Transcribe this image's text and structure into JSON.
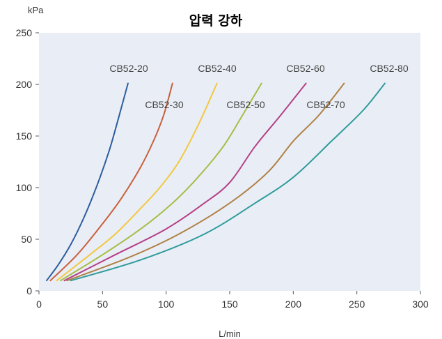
{
  "chart_data": {
    "type": "line",
    "title": "압력 강하",
    "xlabel": "L/min",
    "ylabel": "kPa",
    "xlim": [
      0,
      300
    ],
    "ylim": [
      0,
      250
    ],
    "xticks": [
      0,
      50,
      100,
      150,
      200,
      250,
      300
    ],
    "yticks": [
      0,
      50,
      100,
      150,
      200,
      250
    ],
    "grid": false,
    "plot_background": "#e9eef6",
    "series": [
      {
        "name": "CB52-20",
        "color": "#2e5d9e",
        "x": [
          6,
          15,
          25,
          35,
          45,
          55,
          62,
          70
        ],
        "y": [
          10,
          25,
          45,
          70,
          100,
          135,
          165,
          201
        ]
      },
      {
        "name": "CB52-30",
        "color": "#c95f3c",
        "x": [
          9,
          30,
          50,
          65,
          80,
          90,
          98,
          105
        ],
        "y": [
          10,
          35,
          65,
          90,
          120,
          145,
          170,
          201
        ]
      },
      {
        "name": "CB52-40",
        "color": "#f2c840",
        "x": [
          14,
          40,
          60,
          80,
          95,
          110,
          125,
          140
        ],
        "y": [
          10,
          35,
          55,
          80,
          100,
          125,
          160,
          201
        ]
      },
      {
        "name": "CB52-50",
        "color": "#a7bc45",
        "x": [
          17,
          50,
          80,
          105,
          125,
          145,
          160,
          175
        ],
        "y": [
          10,
          35,
          60,
          85,
          110,
          140,
          170,
          201
        ]
      },
      {
        "name": "CB52-60",
        "color": "#b53f86",
        "x": [
          20,
          60,
          100,
          130,
          150,
          170,
          190,
          210
        ],
        "y": [
          10,
          35,
          60,
          85,
          105,
          140,
          170,
          201
        ]
      },
      {
        "name": "CB52-70",
        "color": "#b08146",
        "x": [
          22,
          70,
          110,
          150,
          180,
          200,
          220,
          240
        ],
        "y": [
          10,
          32,
          55,
          85,
          115,
          145,
          170,
          201
        ]
      },
      {
        "name": "CB52-80",
        "color": "#2f9a9a",
        "x": [
          25,
          80,
          130,
          170,
          200,
          230,
          255,
          272
        ],
        "y": [
          10,
          30,
          55,
          85,
          110,
          145,
          175,
          201
        ]
      }
    ]
  }
}
